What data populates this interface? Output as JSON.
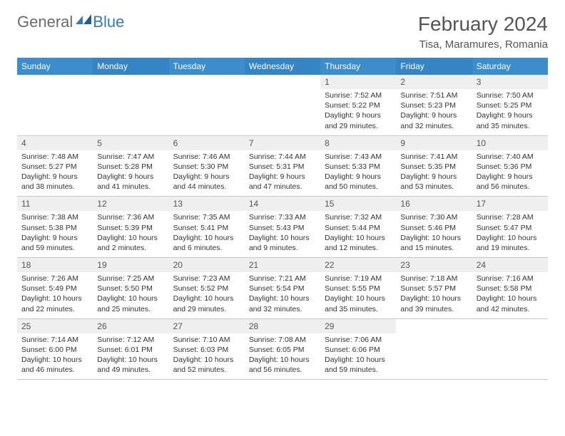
{
  "logo": {
    "general": "General",
    "blue": "Blue"
  },
  "title": "February 2024",
  "location": "Tisa, Maramures, Romania",
  "colors": {
    "header_bg": "#3c8dcc",
    "header_bg_alt": "#3585c4",
    "header_text": "#ffffff",
    "daynum_bg": "#efefef",
    "body_text": "#333333",
    "logo_gray": "#6b6b6b",
    "logo_blue": "#2f7bbf",
    "border": "#c8c8c8"
  },
  "typography": {
    "title_fontsize": 28,
    "location_fontsize": 15,
    "dayheader_fontsize": 12,
    "cell_fontsize": 10.5
  },
  "day_headers": [
    "Sunday",
    "Monday",
    "Tuesday",
    "Wednesday",
    "Thursday",
    "Friday",
    "Saturday"
  ],
  "weeks": [
    [
      {
        "num": "",
        "sunrise": "",
        "sunset": "",
        "daylight": ""
      },
      {
        "num": "",
        "sunrise": "",
        "sunset": "",
        "daylight": ""
      },
      {
        "num": "",
        "sunrise": "",
        "sunset": "",
        "daylight": ""
      },
      {
        "num": "",
        "sunrise": "",
        "sunset": "",
        "daylight": ""
      },
      {
        "num": "1",
        "sunrise": "Sunrise: 7:52 AM",
        "sunset": "Sunset: 5:22 PM",
        "daylight": "Daylight: 9 hours and 29 minutes."
      },
      {
        "num": "2",
        "sunrise": "Sunrise: 7:51 AM",
        "sunset": "Sunset: 5:23 PM",
        "daylight": "Daylight: 9 hours and 32 minutes."
      },
      {
        "num": "3",
        "sunrise": "Sunrise: 7:50 AM",
        "sunset": "Sunset: 5:25 PM",
        "daylight": "Daylight: 9 hours and 35 minutes."
      }
    ],
    [
      {
        "num": "4",
        "sunrise": "Sunrise: 7:48 AM",
        "sunset": "Sunset: 5:27 PM",
        "daylight": "Daylight: 9 hours and 38 minutes."
      },
      {
        "num": "5",
        "sunrise": "Sunrise: 7:47 AM",
        "sunset": "Sunset: 5:28 PM",
        "daylight": "Daylight: 9 hours and 41 minutes."
      },
      {
        "num": "6",
        "sunrise": "Sunrise: 7:46 AM",
        "sunset": "Sunset: 5:30 PM",
        "daylight": "Daylight: 9 hours and 44 minutes."
      },
      {
        "num": "7",
        "sunrise": "Sunrise: 7:44 AM",
        "sunset": "Sunset: 5:31 PM",
        "daylight": "Daylight: 9 hours and 47 minutes."
      },
      {
        "num": "8",
        "sunrise": "Sunrise: 7:43 AM",
        "sunset": "Sunset: 5:33 PM",
        "daylight": "Daylight: 9 hours and 50 minutes."
      },
      {
        "num": "9",
        "sunrise": "Sunrise: 7:41 AM",
        "sunset": "Sunset: 5:35 PM",
        "daylight": "Daylight: 9 hours and 53 minutes."
      },
      {
        "num": "10",
        "sunrise": "Sunrise: 7:40 AM",
        "sunset": "Sunset: 5:36 PM",
        "daylight": "Daylight: 9 hours and 56 minutes."
      }
    ],
    [
      {
        "num": "11",
        "sunrise": "Sunrise: 7:38 AM",
        "sunset": "Sunset: 5:38 PM",
        "daylight": "Daylight: 9 hours and 59 minutes."
      },
      {
        "num": "12",
        "sunrise": "Sunrise: 7:36 AM",
        "sunset": "Sunset: 5:39 PM",
        "daylight": "Daylight: 10 hours and 2 minutes."
      },
      {
        "num": "13",
        "sunrise": "Sunrise: 7:35 AM",
        "sunset": "Sunset: 5:41 PM",
        "daylight": "Daylight: 10 hours and 6 minutes."
      },
      {
        "num": "14",
        "sunrise": "Sunrise: 7:33 AM",
        "sunset": "Sunset: 5:43 PM",
        "daylight": "Daylight: 10 hours and 9 minutes."
      },
      {
        "num": "15",
        "sunrise": "Sunrise: 7:32 AM",
        "sunset": "Sunset: 5:44 PM",
        "daylight": "Daylight: 10 hours and 12 minutes."
      },
      {
        "num": "16",
        "sunrise": "Sunrise: 7:30 AM",
        "sunset": "Sunset: 5:46 PM",
        "daylight": "Daylight: 10 hours and 15 minutes."
      },
      {
        "num": "17",
        "sunrise": "Sunrise: 7:28 AM",
        "sunset": "Sunset: 5:47 PM",
        "daylight": "Daylight: 10 hours and 19 minutes."
      }
    ],
    [
      {
        "num": "18",
        "sunrise": "Sunrise: 7:26 AM",
        "sunset": "Sunset: 5:49 PM",
        "daylight": "Daylight: 10 hours and 22 minutes."
      },
      {
        "num": "19",
        "sunrise": "Sunrise: 7:25 AM",
        "sunset": "Sunset: 5:50 PM",
        "daylight": "Daylight: 10 hours and 25 minutes."
      },
      {
        "num": "20",
        "sunrise": "Sunrise: 7:23 AM",
        "sunset": "Sunset: 5:52 PM",
        "daylight": "Daylight: 10 hours and 29 minutes."
      },
      {
        "num": "21",
        "sunrise": "Sunrise: 7:21 AM",
        "sunset": "Sunset: 5:54 PM",
        "daylight": "Daylight: 10 hours and 32 minutes."
      },
      {
        "num": "22",
        "sunrise": "Sunrise: 7:19 AM",
        "sunset": "Sunset: 5:55 PM",
        "daylight": "Daylight: 10 hours and 35 minutes."
      },
      {
        "num": "23",
        "sunrise": "Sunrise: 7:18 AM",
        "sunset": "Sunset: 5:57 PM",
        "daylight": "Daylight: 10 hours and 39 minutes."
      },
      {
        "num": "24",
        "sunrise": "Sunrise: 7:16 AM",
        "sunset": "Sunset: 5:58 PM",
        "daylight": "Daylight: 10 hours and 42 minutes."
      }
    ],
    [
      {
        "num": "25",
        "sunrise": "Sunrise: 7:14 AM",
        "sunset": "Sunset: 6:00 PM",
        "daylight": "Daylight: 10 hours and 46 minutes."
      },
      {
        "num": "26",
        "sunrise": "Sunrise: 7:12 AM",
        "sunset": "Sunset: 6:01 PM",
        "daylight": "Daylight: 10 hours and 49 minutes."
      },
      {
        "num": "27",
        "sunrise": "Sunrise: 7:10 AM",
        "sunset": "Sunset: 6:03 PM",
        "daylight": "Daylight: 10 hours and 52 minutes."
      },
      {
        "num": "28",
        "sunrise": "Sunrise: 7:08 AM",
        "sunset": "Sunset: 6:05 PM",
        "daylight": "Daylight: 10 hours and 56 minutes."
      },
      {
        "num": "29",
        "sunrise": "Sunrise: 7:06 AM",
        "sunset": "Sunset: 6:06 PM",
        "daylight": "Daylight: 10 hours and 59 minutes."
      },
      {
        "num": "",
        "sunrise": "",
        "sunset": "",
        "daylight": ""
      },
      {
        "num": "",
        "sunrise": "",
        "sunset": "",
        "daylight": ""
      }
    ]
  ]
}
